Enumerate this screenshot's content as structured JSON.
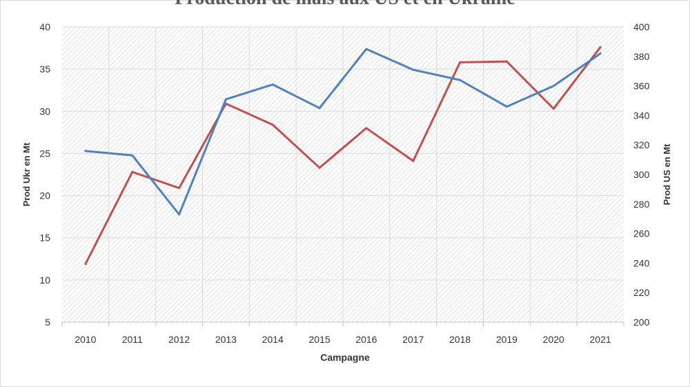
{
  "chart_data": {
    "type": "line",
    "title": "Production de maïs aux US et en Ukraine",
    "xlabel": "Campagne",
    "ylabel_left": "Prod Ukr en Mt",
    "ylabel_right": "Prod US en Mt",
    "categories": [
      "2010",
      "2011",
      "2012",
      "2013",
      "2014",
      "2015",
      "2016",
      "2017",
      "2018",
      "2019",
      "2020",
      "2021"
    ],
    "y_left": {
      "min": 5,
      "max": 40,
      "ticks": [
        5,
        10,
        15,
        20,
        25,
        30,
        35,
        40
      ]
    },
    "y_right": {
      "min": 200,
      "max": 400,
      "ticks": [
        200,
        220,
        240,
        260,
        280,
        300,
        320,
        340,
        360,
        380,
        400
      ]
    },
    "grid": true,
    "series": [
      {
        "axis": "left",
        "color": "#c0504d",
        "values": [
          11.9,
          22.8,
          20.9,
          30.9,
          28.4,
          23.3,
          28.0,
          24.1,
          35.8,
          35.9,
          30.3,
          37.6
        ]
      },
      {
        "axis": "right",
        "color": "#4f81bd",
        "values": [
          316,
          313,
          273,
          351,
          361,
          345,
          385,
          371,
          364,
          346,
          360,
          382
        ]
      }
    ]
  }
}
